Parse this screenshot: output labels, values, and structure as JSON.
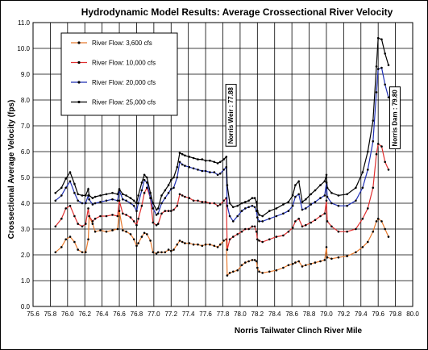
{
  "chart_data": {
    "type": "line",
    "title": "Hydrodynamic Model Results: Average Crossectional River Velocity",
    "xlabel": "Norris Tailwater Clinch River Mile",
    "ylabel": "Crossectional Average Velocity (fps)",
    "xlim": [
      75.6,
      80.0
    ],
    "ylim": [
      0.0,
      11.0
    ],
    "xticks": [
      "75.6",
      "75.8",
      "76.0",
      "76.2",
      "76.4",
      "76.6",
      "76.8",
      "77.0",
      "77.2",
      "77.4",
      "77.6",
      "77.8",
      "78.0",
      "78.2",
      "78.4",
      "78.6",
      "78.8",
      "79.0",
      "79.2",
      "79.4",
      "79.6",
      "79.8",
      "80.0"
    ],
    "yticks": [
      "0.0",
      "1.0",
      "2.0",
      "3.0",
      "4.0",
      "5.0",
      "6.0",
      "7.0",
      "8.0",
      "9.0",
      "10.0",
      "11.0"
    ],
    "grid": true,
    "legend_position": "top-left",
    "annotations": [
      {
        "text": "Norris Weir : 77.88",
        "x": 77.89,
        "y": 7.4
      },
      {
        "text": "Norris Dam : 79.80",
        "x": 79.79,
        "y": 7.3
      }
    ],
    "series": [
      {
        "name": "River Flow: 3,600 cfs",
        "color": "#e87a2e",
        "x": [
          75.86,
          75.93,
          75.98,
          76.03,
          76.08,
          76.12,
          76.17,
          76.21,
          76.24,
          76.25,
          76.29,
          76.32,
          76.38,
          76.45,
          76.52,
          76.58,
          76.6,
          76.64,
          76.68,
          76.73,
          76.77,
          76.8,
          76.82,
          76.86,
          76.89,
          76.92,
          76.96,
          76.99,
          77.03,
          77.05,
          77.09,
          77.13,
          77.17,
          77.2,
          77.23,
          77.27,
          77.3,
          77.33,
          77.36,
          77.41,
          77.46,
          77.51,
          77.56,
          77.6,
          77.65,
          77.7,
          77.74,
          77.77,
          77.81,
          77.84,
          77.85,
          77.88,
          77.92,
          77.97,
          78.02,
          78.06,
          78.1,
          78.14,
          78.17,
          78.19,
          78.2,
          78.22,
          78.26,
          78.34,
          78.42,
          78.5,
          78.56,
          78.61,
          78.64,
          78.68,
          78.72,
          78.76,
          78.82,
          78.87,
          78.93,
          78.98,
          79.0,
          79.01,
          79.06,
          79.14,
          79.24,
          79.34,
          79.42,
          79.48,
          79.54,
          79.58,
          79.6,
          79.64,
          79.68,
          79.72
        ],
        "y": [
          2.1,
          2.3,
          2.6,
          2.7,
          2.5,
          2.2,
          2.1,
          2.1,
          2.6,
          3.5,
          3.2,
          2.9,
          2.95,
          2.9,
          2.95,
          3.0,
          3.7,
          2.95,
          2.9,
          2.8,
          2.6,
          2.35,
          2.45,
          2.7,
          2.85,
          2.8,
          2.55,
          2.1,
          2.05,
          2.1,
          2.1,
          2.1,
          2.2,
          2.15,
          2.2,
          2.4,
          2.55,
          2.5,
          2.45,
          2.45,
          2.4,
          2.4,
          2.35,
          2.4,
          2.4,
          2.35,
          2.3,
          2.4,
          2.55,
          2.6,
          1.2,
          1.3,
          1.35,
          1.4,
          1.6,
          1.7,
          1.75,
          1.8,
          1.8,
          1.75,
          1.5,
          1.35,
          1.3,
          1.35,
          1.4,
          1.5,
          1.6,
          1.65,
          1.7,
          1.75,
          1.55,
          1.6,
          1.65,
          1.7,
          1.75,
          1.8,
          2.3,
          1.9,
          1.85,
          1.9,
          1.95,
          2.1,
          2.3,
          2.5,
          2.9,
          3.3,
          3.4,
          3.3,
          3.0,
          2.7
        ]
      },
      {
        "name": "River Flow: 10,000 cfs",
        "color": "#e03030",
        "x": [
          75.86,
          75.93,
          75.98,
          76.03,
          76.08,
          76.12,
          76.17,
          76.21,
          76.24,
          76.25,
          76.29,
          76.32,
          76.38,
          76.45,
          76.52,
          76.58,
          76.6,
          76.64,
          76.68,
          76.73,
          76.77,
          76.8,
          76.82,
          76.86,
          76.89,
          76.92,
          76.96,
          76.99,
          77.03,
          77.05,
          77.09,
          77.13,
          77.17,
          77.2,
          77.23,
          77.27,
          77.3,
          77.33,
          77.36,
          77.41,
          77.46,
          77.51,
          77.56,
          77.6,
          77.65,
          77.7,
          77.74,
          77.77,
          77.81,
          77.84,
          77.85,
          77.88,
          77.92,
          77.97,
          78.02,
          78.06,
          78.1,
          78.14,
          78.17,
          78.19,
          78.2,
          78.22,
          78.26,
          78.34,
          78.42,
          78.5,
          78.56,
          78.61,
          78.64,
          78.68,
          78.72,
          78.76,
          78.82,
          78.87,
          78.93,
          78.98,
          79.0,
          79.01,
          79.06,
          79.14,
          79.24,
          79.34,
          79.42,
          79.48,
          79.54,
          79.58,
          79.6,
          79.64,
          79.68,
          79.72
        ],
        "y": [
          3.1,
          3.4,
          3.8,
          3.9,
          3.5,
          3.2,
          3.1,
          3.2,
          3.8,
          3.5,
          3.3,
          3.4,
          3.5,
          3.5,
          3.55,
          3.5,
          4.1,
          3.6,
          3.55,
          3.45,
          3.3,
          3.15,
          3.4,
          3.9,
          4.4,
          4.6,
          4.2,
          3.25,
          3.15,
          3.2,
          3.6,
          3.7,
          3.7,
          3.7,
          3.75,
          3.9,
          4.35,
          4.3,
          4.25,
          4.2,
          4.1,
          4.1,
          4.05,
          4.05,
          4.0,
          4.0,
          3.9,
          3.95,
          4.1,
          4.2,
          2.2,
          2.6,
          2.7,
          2.8,
          2.9,
          3.0,
          3.0,
          3.1,
          3.1,
          2.9,
          2.6,
          2.55,
          2.5,
          2.6,
          2.7,
          2.75,
          2.9,
          3.05,
          3.3,
          3.4,
          3.1,
          3.15,
          3.25,
          3.35,
          3.5,
          3.6,
          4.1,
          3.3,
          3.1,
          2.9,
          2.9,
          3.0,
          3.4,
          3.8,
          4.6,
          5.9,
          6.3,
          6.2,
          5.6,
          5.3
        ]
      },
      {
        "name": "River Flow: 20,000 cfs",
        "color": "#1f2fb5",
        "x": [
          75.86,
          75.93,
          75.98,
          76.03,
          76.08,
          76.12,
          76.17,
          76.21,
          76.24,
          76.25,
          76.29,
          76.32,
          76.38,
          76.45,
          76.52,
          76.58,
          76.6,
          76.64,
          76.68,
          76.73,
          76.77,
          76.8,
          76.82,
          76.86,
          76.89,
          76.92,
          76.96,
          76.99,
          77.03,
          77.05,
          77.09,
          77.13,
          77.17,
          77.2,
          77.23,
          77.27,
          77.3,
          77.33,
          77.36,
          77.41,
          77.46,
          77.51,
          77.56,
          77.6,
          77.65,
          77.7,
          77.74,
          77.77,
          77.81,
          77.84,
          77.85,
          77.88,
          77.92,
          77.97,
          78.02,
          78.06,
          78.1,
          78.14,
          78.17,
          78.19,
          78.2,
          78.22,
          78.26,
          78.34,
          78.42,
          78.5,
          78.56,
          78.61,
          78.64,
          78.68,
          78.72,
          78.76,
          78.82,
          78.87,
          78.93,
          78.98,
          79.0,
          79.01,
          79.06,
          79.14,
          79.24,
          79.34,
          79.42,
          79.48,
          79.54,
          79.58,
          79.6,
          79.64,
          79.68,
          79.72
        ],
        "y": [
          4.1,
          4.3,
          4.6,
          4.85,
          4.4,
          4.1,
          4.0,
          4.0,
          4.3,
          4.15,
          3.95,
          4.0,
          4.05,
          4.1,
          4.15,
          4.1,
          4.5,
          4.15,
          4.1,
          4.0,
          3.9,
          3.7,
          4.0,
          4.5,
          4.9,
          4.8,
          4.2,
          3.8,
          3.55,
          3.6,
          4.0,
          4.2,
          4.4,
          4.55,
          4.6,
          5.0,
          5.6,
          5.5,
          5.45,
          5.4,
          5.35,
          5.3,
          5.25,
          5.25,
          5.2,
          5.2,
          5.1,
          5.15,
          5.3,
          5.4,
          3.9,
          3.5,
          3.3,
          3.5,
          3.7,
          3.8,
          3.85,
          3.9,
          3.85,
          3.7,
          3.45,
          3.3,
          3.3,
          3.4,
          3.5,
          3.6,
          3.7,
          3.9,
          4.25,
          4.35,
          3.75,
          3.8,
          3.95,
          4.05,
          4.2,
          4.3,
          4.8,
          4.25,
          4.0,
          3.9,
          3.9,
          4.1,
          4.6,
          5.3,
          6.4,
          8.3,
          9.2,
          9.25,
          8.6,
          8.1
        ]
      },
      {
        "name": "River Flow: 25,000 cfs",
        "color": "#000000",
        "x": [
          75.86,
          75.93,
          75.98,
          76.03,
          76.08,
          76.12,
          76.17,
          76.21,
          76.24,
          76.25,
          76.29,
          76.32,
          76.38,
          76.45,
          76.52,
          76.58,
          76.6,
          76.64,
          76.68,
          76.73,
          76.77,
          76.8,
          76.82,
          76.86,
          76.89,
          76.92,
          76.96,
          76.99,
          77.03,
          77.05,
          77.09,
          77.13,
          77.17,
          77.2,
          77.23,
          77.27,
          77.3,
          77.33,
          77.36,
          77.41,
          77.46,
          77.51,
          77.56,
          77.6,
          77.65,
          77.7,
          77.74,
          77.77,
          77.81,
          77.84,
          77.85,
          77.88,
          77.92,
          77.97,
          78.02,
          78.06,
          78.1,
          78.14,
          78.17,
          78.19,
          78.2,
          78.22,
          78.26,
          78.34,
          78.42,
          78.5,
          78.56,
          78.61,
          78.64,
          78.68,
          78.72,
          78.76,
          78.82,
          78.87,
          78.93,
          78.98,
          79.0,
          79.01,
          79.06,
          79.14,
          79.24,
          79.34,
          79.42,
          79.48,
          79.54,
          79.58,
          79.6,
          79.64,
          79.68,
          79.72
        ],
        "y": [
          4.4,
          4.6,
          4.95,
          5.2,
          4.75,
          4.35,
          4.3,
          4.3,
          4.55,
          4.3,
          4.2,
          4.25,
          4.3,
          4.35,
          4.4,
          4.35,
          4.55,
          4.35,
          4.3,
          4.2,
          4.1,
          4.0,
          4.3,
          4.8,
          5.1,
          5.0,
          4.4,
          4.0,
          3.75,
          3.8,
          4.3,
          4.5,
          4.7,
          4.9,
          5.0,
          5.4,
          5.95,
          5.9,
          5.85,
          5.8,
          5.75,
          5.7,
          5.7,
          5.65,
          5.65,
          5.6,
          5.55,
          5.6,
          5.7,
          5.8,
          4.7,
          4.0,
          3.85,
          3.9,
          4.0,
          4.05,
          4.1,
          4.2,
          4.2,
          4.05,
          3.7,
          3.55,
          3.5,
          3.7,
          3.8,
          3.95,
          4.05,
          4.3,
          4.7,
          4.85,
          4.05,
          4.15,
          4.35,
          4.5,
          4.7,
          4.85,
          5.1,
          4.6,
          4.4,
          4.3,
          4.35,
          4.6,
          5.2,
          6.0,
          7.2,
          9.3,
          10.4,
          10.35,
          9.8,
          9.35
        ]
      }
    ]
  }
}
